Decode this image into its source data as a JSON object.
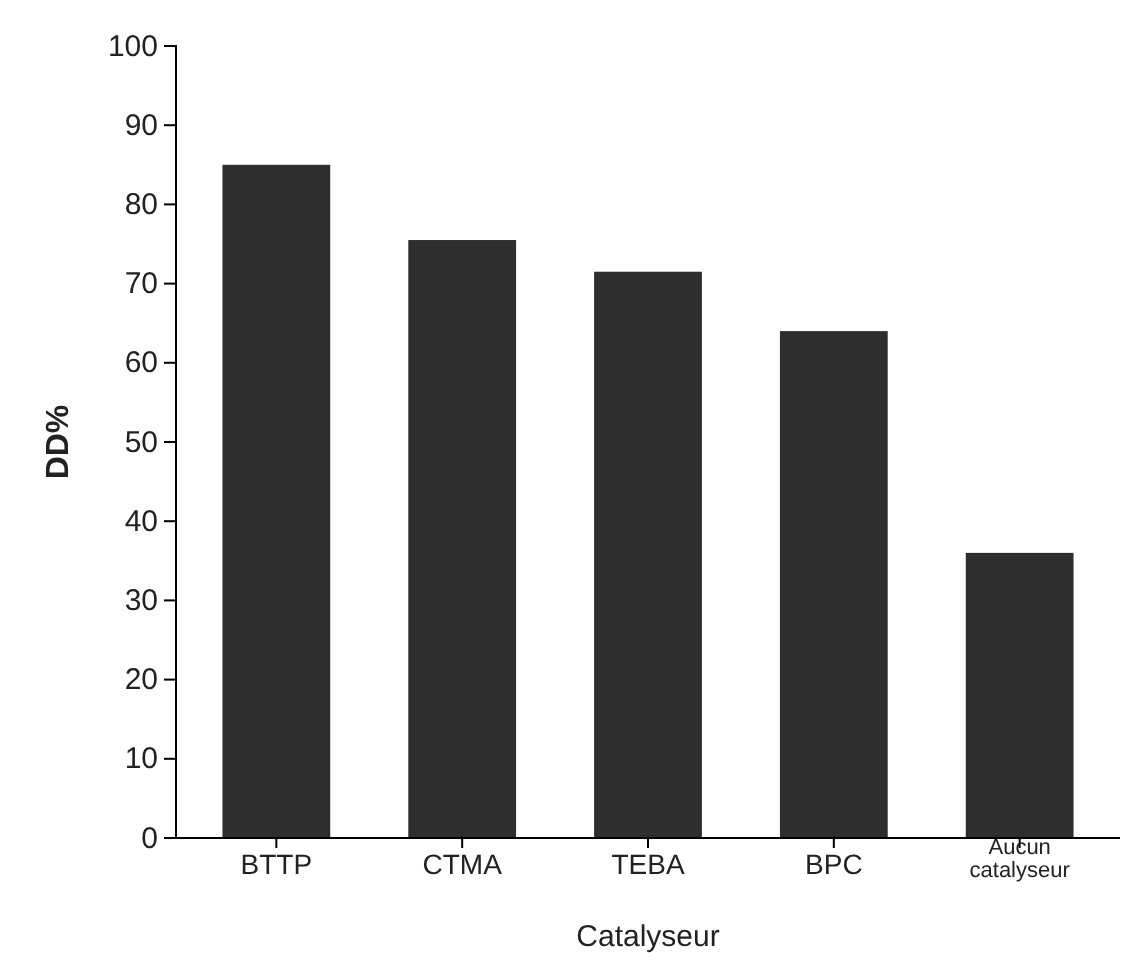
{
  "chart_data": {
    "type": "bar",
    "xlabel": "Catalyseur",
    "ylabel": "DD%",
    "categories": [
      "BTTP",
      "CTMA",
      "TEBA",
      "BPC",
      "Aucun catalyseur"
    ],
    "values": [
      85,
      75.5,
      71.5,
      64,
      36
    ],
    "color": "#2e2e2e",
    "ylim": [
      0,
      100
    ],
    "yticks": [
      0,
      10,
      20,
      30,
      40,
      50,
      60,
      70,
      80,
      90,
      100
    ],
    "grid": false
  }
}
